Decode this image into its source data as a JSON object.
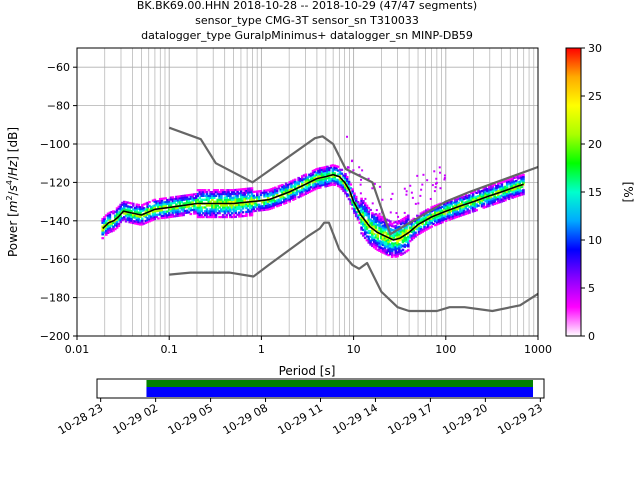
{
  "chart_data": {
    "type": "heatmap",
    "title_lines": [
      "BK.BK69.00.HHN   2018-10-28 -- 2018-10-29  (47/47 segments)",
      "sensor_type CMG-3T sensor_sn T310033",
      "datalogger_type GuralpMinimus+ datalogger_sn MINP-DB59"
    ],
    "xlabel": "Period [s]",
    "ylabel": "Power [m²/s⁴/Hz] [dB]",
    "x_scale": "log",
    "xlim": [
      0.01,
      1000
    ],
    "ylim": [
      -200,
      -50
    ],
    "x_ticks": [
      0.01,
      0.1,
      1,
      10,
      100,
      1000
    ],
    "x_tick_labels": [
      "0.01",
      "0.1",
      "1",
      "10",
      "100",
      "1000"
    ],
    "y_ticks": [
      -200,
      -180,
      -160,
      -140,
      -120,
      -100,
      -80,
      -60
    ],
    "y_tick_labels": [
      "−200",
      "−180",
      "−160",
      "−140",
      "−120",
      "−100",
      "−80",
      "−60"
    ],
    "grid": true,
    "colorbar": {
      "label": "[%]",
      "range": [
        0,
        30
      ],
      "ticks": [
        0,
        5,
        10,
        15,
        20,
        25,
        30
      ],
      "tick_labels": [
        "0",
        "5",
        "10",
        "15",
        "20",
        "25",
        "30"
      ],
      "colormap": [
        "#ffffff",
        "#ff00ff",
        "#8800ff",
        "#0000ff",
        "#00aaff",
        "#00ffcc",
        "#00ff00",
        "#aaff00",
        "#ffff00",
        "#ffaa00",
        "#ff0000"
      ]
    },
    "series": [
      {
        "kind": "line",
        "color": "#666666",
        "points": [
          [
            0.1,
            -91.5
          ],
          [
            0.22,
            -97.5
          ],
          [
            0.32,
            -110
          ],
          [
            0.8,
            -120
          ],
          [
            3.8,
            -97
          ],
          [
            4.6,
            -96
          ],
          [
            6,
            -100
          ],
          [
            8.2,
            -113
          ],
          [
            16,
            -120
          ],
          [
            25,
            -147
          ],
          [
            100,
            -130
          ],
          [
            180,
            -125
          ],
          [
            1000,
            -112
          ]
        ]
      },
      {
        "kind": "line",
        "color": "#666666",
        "points": [
          [
            0.1,
            -168
          ],
          [
            0.17,
            -167
          ],
          [
            0.45,
            -167
          ],
          [
            0.82,
            -169
          ],
          [
            1.2,
            -163
          ],
          [
            3.2,
            -148
          ],
          [
            4.3,
            -144
          ],
          [
            4.8,
            -141
          ],
          [
            5.4,
            -141
          ],
          [
            7,
            -155
          ],
          [
            9.7,
            -163
          ],
          [
            11.5,
            -165
          ],
          [
            14,
            -162
          ],
          [
            20,
            -177
          ],
          [
            30,
            -185
          ],
          [
            40,
            -187
          ],
          [
            80,
            -187
          ],
          [
            110,
            -185
          ],
          [
            160,
            -185
          ],
          [
            320,
            -187
          ],
          [
            640,
            -184
          ],
          [
            1000,
            -178
          ]
        ]
      },
      {
        "kind": "line",
        "color": "#000000",
        "points": [
          [
            0.019,
            -144
          ],
          [
            0.022,
            -141
          ],
          [
            0.025,
            -140
          ],
          [
            0.028,
            -138
          ],
          [
            0.032,
            -135
          ],
          [
            0.04,
            -136
          ],
          [
            0.05,
            -137
          ],
          [
            0.07,
            -134
          ],
          [
            0.1,
            -133
          ],
          [
            0.2,
            -131
          ],
          [
            0.3,
            -131
          ],
          [
            0.5,
            -131
          ],
          [
            0.8,
            -130
          ],
          [
            1.2,
            -129
          ],
          [
            2,
            -125
          ],
          [
            3,
            -121
          ],
          [
            4,
            -118
          ],
          [
            5,
            -117
          ],
          [
            6,
            -116
          ],
          [
            7,
            -117
          ],
          [
            8,
            -120
          ],
          [
            9,
            -124
          ],
          [
            10,
            -130
          ],
          [
            12,
            -137
          ],
          [
            15,
            -143
          ],
          [
            18,
            -146
          ],
          [
            22,
            -148
          ],
          [
            27,
            -150
          ],
          [
            32,
            -149
          ],
          [
            40,
            -146
          ],
          [
            50,
            -142
          ],
          [
            70,
            -138
          ],
          [
            100,
            -135
          ],
          [
            150,
            -132
          ],
          [
            200,
            -130
          ],
          [
            300,
            -127
          ],
          [
            400,
            -125
          ],
          [
            600,
            -122
          ],
          [
            700,
            -121
          ]
        ]
      }
    ],
    "time_axis": {
      "tick_labels": [
        "10-28 23",
        "10-29 02",
        "10-29 05",
        "10-29 08",
        "10-29 11",
        "10-29 14",
        "10-29 17",
        "10-29 20",
        "10-29 23"
      ],
      "coverage_start_hours": 2.5,
      "coverage_end_hours": 23.6,
      "range_hours": [
        -0.2,
        24.2
      ],
      "bar_colors": [
        "#008000",
        "#0000ff"
      ]
    }
  }
}
